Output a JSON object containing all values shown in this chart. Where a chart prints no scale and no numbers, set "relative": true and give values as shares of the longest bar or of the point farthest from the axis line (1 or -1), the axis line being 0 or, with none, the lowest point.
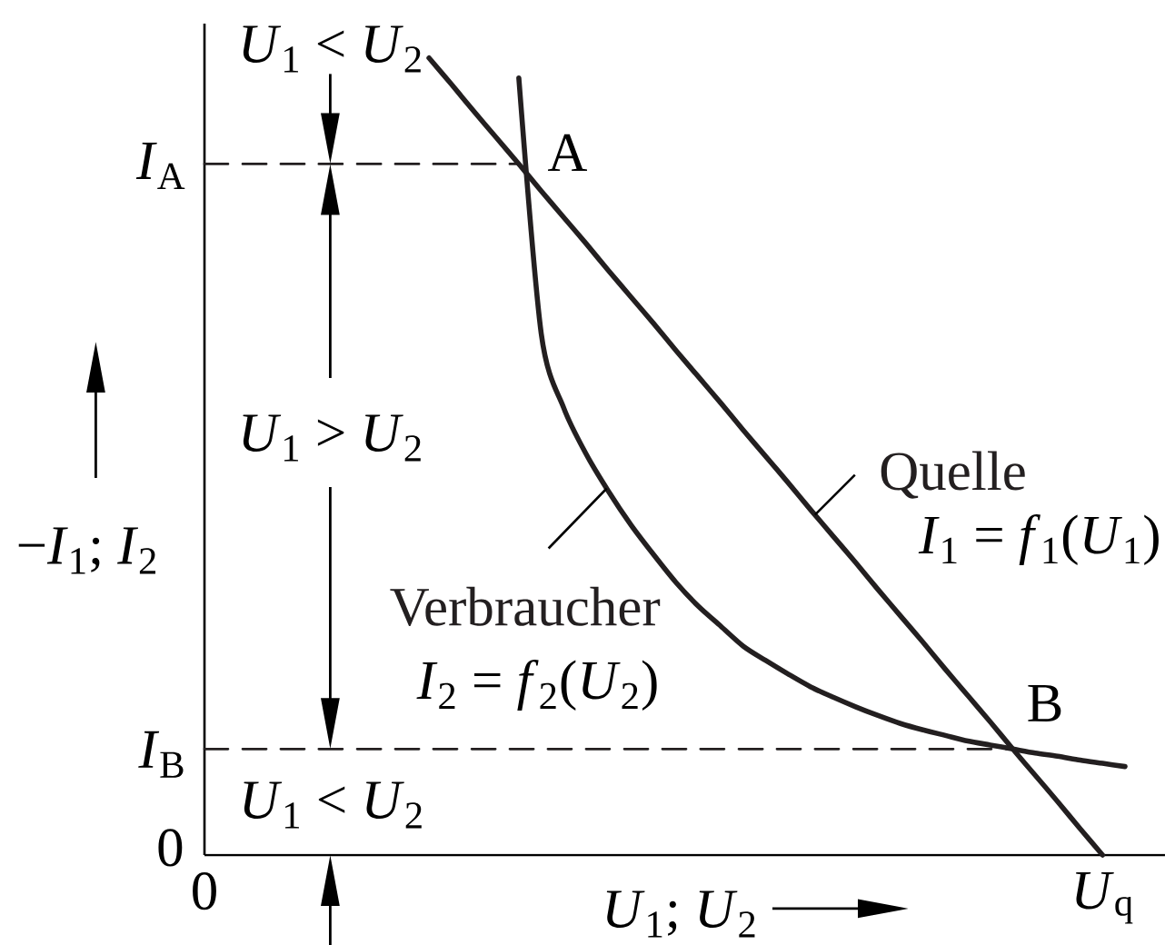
{
  "chart_data": {
    "type": "line",
    "relative": true,
    "xlabel": "*U*$_{1}$; *U*$_{2}$",
    "ylabel": "−*I*$_{1}$; *I*$_{2}$",
    "categories": [
      "0",
      null,
      null,
      null,
      null,
      null,
      null,
      null,
      null,
      null,
      null,
      null,
      null,
      null,
      null,
      null,
      null,
      null,
      null,
      null,
      null,
      null,
      null,
      null,
      null,
      null,
      null,
      null,
      null,
      null,
      null,
      null,
      null,
      null,
      null,
      null,
      null,
      null,
      null,
      null,
      "*U*$_{q}$",
      null
    ],
    "series": [
      {
        "name": "Quelle",
        "color": "#231f20",
        "values": [
          null,
          null,
          null,
          null,
          null,
          null,
          null,
          null,
          null,
          null,
          1,
          0.967,
          0.933,
          0.9,
          0.867,
          0.833,
          0.8,
          0.767,
          0.733,
          0.7,
          0.667,
          0.633,
          0.6,
          0.567,
          0.533,
          0.5,
          0.467,
          0.433,
          0.4,
          0.367,
          0.333,
          0.3,
          0.267,
          0.233,
          0.2,
          0.167,
          0.133,
          0.1,
          0.067,
          0.033,
          0,
          null
        ]
      },
      {
        "name": "Verbraucher",
        "color": "#231f20",
        "values": [
          null,
          null,
          null,
          null,
          null,
          null,
          null,
          null,
          null,
          null,
          null,
          null,
          null,
          null,
          0.975,
          0.654,
          0.561,
          0.503,
          0.456,
          0.414,
          0.377,
          0.342,
          0.312,
          0.287,
          0.262,
          0.244,
          0.227,
          0.211,
          0.198,
          0.186,
          0.175,
          0.165,
          0.157,
          0.15,
          0.143,
          0.138,
          0.133,
          0.128,
          0.124,
          0.119,
          0.115,
          0.111
        ]
      },
      {
        "color": "#231f20",
        "line_style": "dashed",
        "values": [
          0.867,
          0.867,
          0.867,
          0.867,
          0.867,
          0.867,
          0.867,
          0.867,
          0.867,
          0.867,
          0.867,
          0.867,
          0.867,
          0.867,
          0.867,
          null,
          null,
          null,
          null,
          null,
          null,
          null,
          null,
          null,
          null,
          null,
          null,
          null,
          null,
          null,
          null,
          null,
          null,
          null,
          null,
          null,
          null,
          null,
          null,
          null,
          null,
          null
        ]
      },
      {
        "color": "#231f20",
        "line_style": "dashed",
        "values": [
          0.133,
          0.133,
          0.133,
          0.133,
          0.133,
          0.133,
          0.133,
          0.133,
          0.133,
          0.133,
          0.133,
          0.133,
          0.133,
          0.133,
          0.133,
          0.133,
          0.133,
          0.133,
          0.133,
          0.133,
          0.133,
          0.133,
          0.133,
          0.133,
          0.133,
          0.133,
          0.133,
          0.133,
          0.133,
          0.133,
          0.133,
          0.133,
          0.133,
          0.133,
          0.133,
          0.133,
          0.133,
          null,
          null,
          null,
          null,
          null
        ]
      }
    ],
    "annotations": [
      "*U*$_{1}$ < *U*$_{2}$",
      "*U*$_{1}$ > *U*$_{2}$",
      "*U*$_{1}$ < *U*$_{2}$",
      "A",
      "B",
      "*I*$_{1}$ = *f*$_{1}$(*U*$_{1}$)",
      "*I*$_{2}$ = *f*$_{2}$(*U*$_{2}$)",
      "0",
      "*I*$_{A}$",
      "*I*$_{B}$"
    ]
  }
}
